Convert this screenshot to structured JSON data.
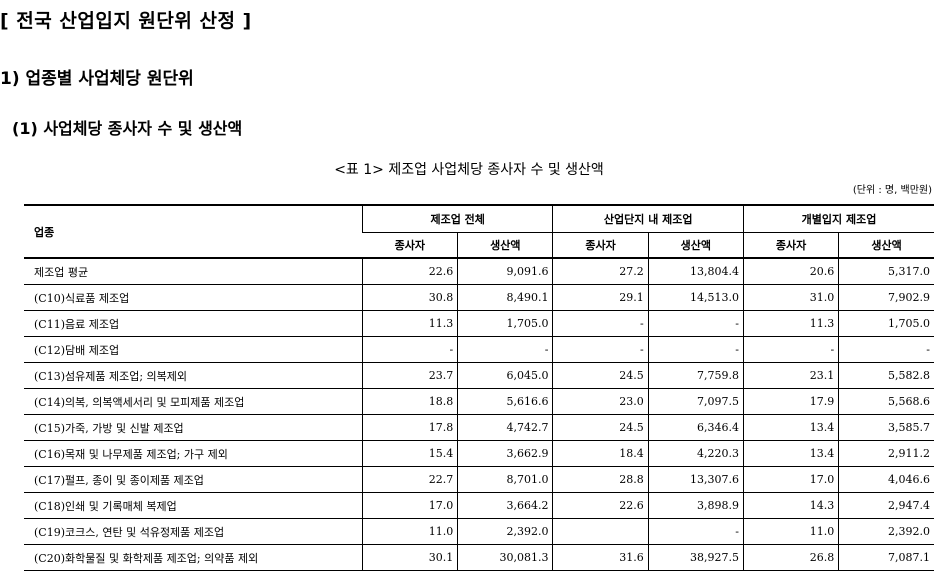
{
  "headings": {
    "main": "[ 전국 산업입지 원단위 산정 ]",
    "sub1": "1)  업종별 사업체당 원단위",
    "sub2": "(1)  사업체당 종사자 수 및 생산액"
  },
  "table": {
    "caption": "<표 1> 제조업 사업체당 종사자 수 및 생산액",
    "unit": "(단위 : 명, 백만원)",
    "industry_header": "업종",
    "group_headers": [
      "제조업 전체",
      "산업단지 내 제조업",
      "개별입지 제조업"
    ],
    "sub_headers": [
      "종사자",
      "생산액",
      "종사자",
      "생산액",
      "종사자",
      "생산액"
    ],
    "rows": [
      {
        "name": "제조업 평균",
        "values": [
          "22.6",
          "9,091.6",
          "27.2",
          "13,804.4",
          "20.6",
          "5,317.0"
        ]
      },
      {
        "name": "(C10)식료품 제조업",
        "values": [
          "30.8",
          "8,490.1",
          "29.1",
          "14,513.0",
          "31.0",
          "7,902.9"
        ]
      },
      {
        "name": "(C11)음료 제조업",
        "values": [
          "11.3",
          "1,705.0",
          "-",
          "-",
          "11.3",
          "1,705.0"
        ]
      },
      {
        "name": "(C12)담배 제조업",
        "values": [
          "-",
          "-",
          "-",
          "-",
          "-",
          "-"
        ]
      },
      {
        "name": "(C13)섬유제품 제조업; 의복제외",
        "values": [
          "23.7",
          "6,045.0",
          "24.5",
          "7,759.8",
          "23.1",
          "5,582.8"
        ]
      },
      {
        "name": "(C14)의복, 의복액세서리 및 모피제품 제조업",
        "values": [
          "18.8",
          "5,616.6",
          "23.0",
          "7,097.5",
          "17.9",
          "5,568.6"
        ]
      },
      {
        "name": "(C15)가죽, 가방 및 신발 제조업",
        "values": [
          "17.8",
          "4,742.7",
          "24.5",
          "6,346.4",
          "13.4",
          "3,585.7"
        ]
      },
      {
        "name": "(C16)목재 및 나무제품 제조업; 가구 제외",
        "values": [
          "15.4",
          "3,662.9",
          "18.4",
          "4,220.3",
          "13.4",
          "2,911.2"
        ]
      },
      {
        "name": "(C17)펄프, 종이 및 종이제품 제조업",
        "values": [
          "22.7",
          "8,701.0",
          "28.8",
          "13,307.6",
          "17.0",
          "4,046.6"
        ]
      },
      {
        "name": "(C18)인쇄 및 기록매체 복제업",
        "values": [
          "17.0",
          "3,664.2",
          "22.6",
          "3,898.9",
          "14.3",
          "2,947.4"
        ]
      },
      {
        "name": "(C19)코크스, 연탄 및 석유정제품 제조업",
        "values": [
          "11.0",
          "2,392.0",
          "",
          "-",
          "11.0",
          "2,392.0"
        ]
      },
      {
        "name": "(C20)화학물질 및 화학제품 제조업; 의약품 제외",
        "values": [
          "30.1",
          "30,081.3",
          "31.6",
          "38,927.5",
          "26.8",
          "7,087.1"
        ]
      }
    ]
  }
}
